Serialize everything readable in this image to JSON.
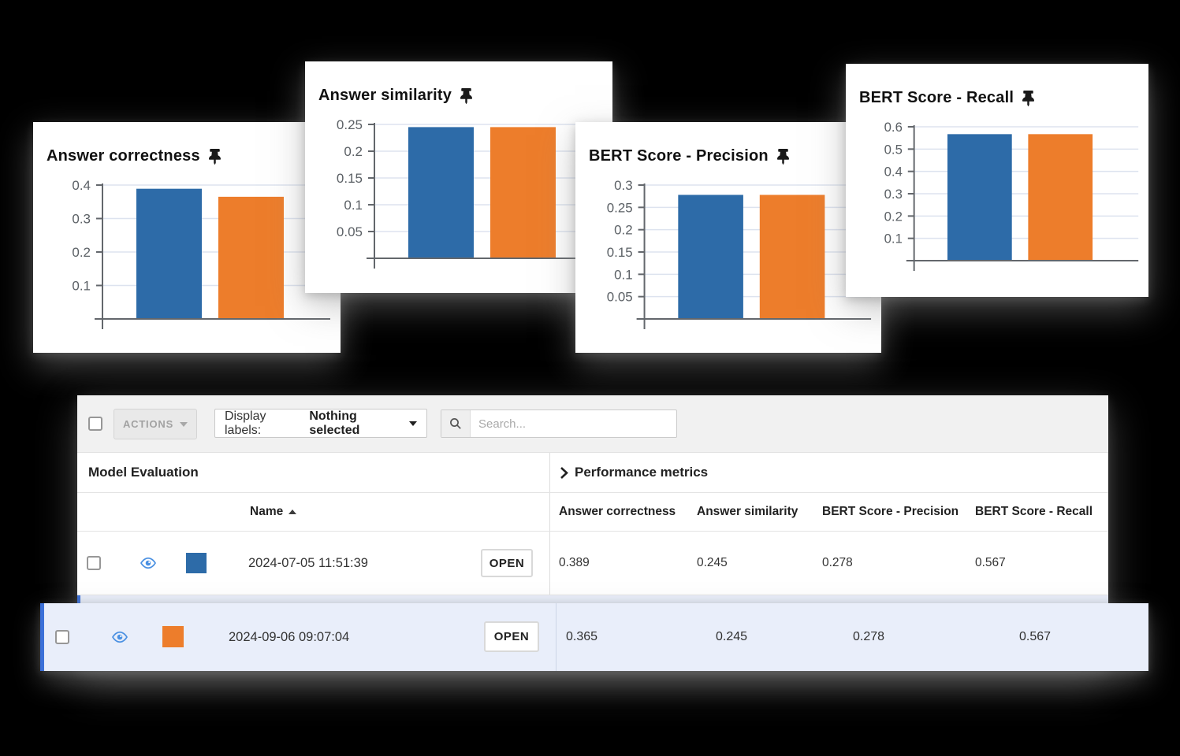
{
  "colors": {
    "series_blue": "#2d6ba8",
    "series_orange": "#ed7d2b",
    "selected_row_bg": "#e9eefa",
    "selected_row_border": "#3c70d8",
    "grid_line": "#dde3ef",
    "axis_line": "#63676c",
    "tick_label": "#5b6065",
    "eye_icon_blue": "#4a90e2"
  },
  "chart_data": [
    {
      "type": "bar",
      "title": "Answer correctness",
      "pinned": true,
      "categories": [
        "2024-07-05 11:51:39",
        "2024-09-06 09:07:04"
      ],
      "values": [
        0.389,
        0.365
      ],
      "bar_colors": [
        "#2d6ba8",
        "#ed7d2b"
      ],
      "ticks": [
        "0.1",
        "0.2",
        "0.3",
        "0.4"
      ],
      "ylim": [
        0,
        0.4
      ],
      "grid": true,
      "legend": false
    },
    {
      "type": "bar",
      "title": "Answer similarity",
      "pinned": true,
      "categories": [
        "2024-07-05 11:51:39",
        "2024-09-06 09:07:04"
      ],
      "values": [
        0.245,
        0.245
      ],
      "bar_colors": [
        "#2d6ba8",
        "#ed7d2b"
      ],
      "ticks": [
        "0.05",
        "0.1",
        "0.15",
        "0.2",
        "0.25"
      ],
      "ylim": [
        0,
        0.25
      ],
      "grid": true,
      "legend": false
    },
    {
      "type": "bar",
      "title": "BERT Score - Precision",
      "pinned": true,
      "categories": [
        "2024-07-05 11:51:39",
        "2024-09-06 09:07:04"
      ],
      "values": [
        0.278,
        0.278
      ],
      "bar_colors": [
        "#2d6ba8",
        "#ed7d2b"
      ],
      "ticks": [
        "0.05",
        "0.1",
        "0.15",
        "0.2",
        "0.25",
        "0.3"
      ],
      "ylim": [
        0,
        0.3
      ],
      "grid": true,
      "legend": false
    },
    {
      "type": "bar",
      "title": "BERT Score - Recall",
      "pinned": true,
      "categories": [
        "2024-07-05 11:51:39",
        "2024-09-06 09:07:04"
      ],
      "values": [
        0.567,
        0.567
      ],
      "bar_colors": [
        "#2d6ba8",
        "#ed7d2b"
      ],
      "ticks": [
        "0.1",
        "0.2",
        "0.3",
        "0.4",
        "0.5",
        "0.6"
      ],
      "ylim": [
        0,
        0.6
      ],
      "grid": true,
      "legend": false
    }
  ],
  "toolbar": {
    "actions_label": "ACTIONS",
    "display_labels_prefix": "Display labels:",
    "display_labels_value": "Nothing selected",
    "search_placeholder": "Search..."
  },
  "table": {
    "group_headers": {
      "left": "Model Evaluation",
      "right": "Performance metrics"
    },
    "columns": {
      "name": "Name",
      "metrics": [
        "Answer correctness",
        "Answer similarity",
        "BERT Score - Precision",
        "BERT Score - Recall"
      ]
    },
    "open_label": "OPEN",
    "rows": [
      {
        "name": "2024-07-05 11:51:39",
        "swatch_color": "#2d6ba8",
        "selected": false,
        "metrics": [
          "0.389",
          "0.245",
          "0.278",
          "0.567"
        ]
      },
      {
        "name": "2024-09-06 09:07:04",
        "swatch_color": "#ed7d2b",
        "selected": true,
        "metrics": [
          "0.365",
          "0.245",
          "0.278",
          "0.567"
        ]
      }
    ]
  }
}
